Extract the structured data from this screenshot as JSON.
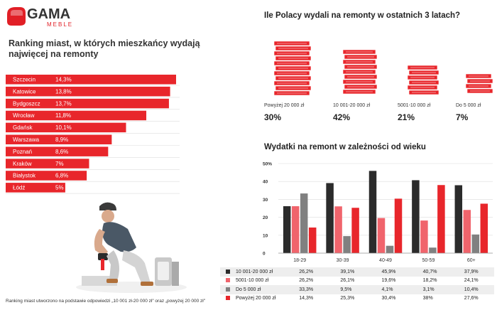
{
  "logo": {
    "brand": "GAMA",
    "sub": "MEBLE",
    "colors": {
      "red": "#e11f26",
      "dark": "#333333"
    }
  },
  "ranking": {
    "title": "Ranking miast, w których mieszkańcy wydają najwięcej na remonty",
    "color": "#e8262b"
  },
  "footnote": "Ranking miast utworzono na podstawie odpowiedzi „10 001 zł-20 000 zł\" oraz „powyżej 20 000 zł\"",
  "spending": {
    "title": "Ile Polacy wydali na remonty w ostatnich 3 latach?",
    "groups": [
      {
        "label": "Powyżej 20 000 zł",
        "pct": "30%"
      },
      {
        "label": "10 001-20 000 zł",
        "pct": "42%"
      },
      {
        "label": "5001-10 000 zł",
        "pct": "21%"
      },
      {
        "label": "Do 5 000 zł",
        "pct": "7%"
      }
    ]
  },
  "age": {
    "title": "Wydatki na remont w zależności od wieku"
  },
  "chart_data": [
    {
      "type": "bar",
      "orientation": "horizontal",
      "title": "Ranking miast, w których mieszkańcy wydają najwięcej na remonty",
      "categories": [
        "Szczecin",
        "Katowice",
        "Bydgoszcz",
        "Wrocław",
        "Gdańsk",
        "Warszawa",
        "Poznań",
        "Kraków",
        "Białystok",
        "Łódź"
      ],
      "values": [
        14.3,
        13.8,
        13.7,
        11.8,
        10.1,
        8.9,
        8.6,
        7,
        6.8,
        5
      ],
      "value_labels": [
        "14,3%",
        "13,8%",
        "13,7%",
        "11,8%",
        "10,1%",
        "8,9%",
        "8,6%",
        "7%",
        "6,8%",
        "5%"
      ]
    },
    {
      "type": "bar",
      "title": "Wydatki na remont w zależności od wieku",
      "categories": [
        "18-29",
        "30-39",
        "40-49",
        "50-59",
        "60+"
      ],
      "ylim": [
        0,
        50
      ],
      "yticks": [
        "0",
        "10",
        "20",
        "30",
        "40",
        "50%"
      ],
      "grid": true,
      "legend": "bottom",
      "series": [
        {
          "name": "10 001-20 000 zł",
          "color": "#2b2b2b",
          "values": [
            26.2,
            39.1,
            45.9,
            40.7,
            37.9
          ],
          "labels": [
            "26,2%",
            "39,1%",
            "45,9%",
            "40,7%",
            "37,9%"
          ]
        },
        {
          "name": "5001-10 000 zł",
          "color": "#f0646c",
          "values": [
            26.2,
            26.1,
            19.6,
            18.2,
            24.1
          ],
          "labels": [
            "26,2%",
            "26,1%",
            "19,6%",
            "18,2%",
            "24,1%"
          ]
        },
        {
          "name": "Do 5 000 zł",
          "color": "#808080",
          "values": [
            33.3,
            9.5,
            4.1,
            3.1,
            10.4
          ],
          "labels": [
            "33,3%",
            "9,5%",
            "4,1%",
            "3,1%",
            "10,4%"
          ]
        },
        {
          "name": "Powyżej 20 000 zł",
          "color": "#e8262b",
          "values": [
            14.3,
            25.3,
            30.4,
            38,
            27.6
          ],
          "labels": [
            "14,3%",
            "25,3%",
            "30,4%",
            "38%",
            "27,6%"
          ]
        }
      ]
    }
  ]
}
